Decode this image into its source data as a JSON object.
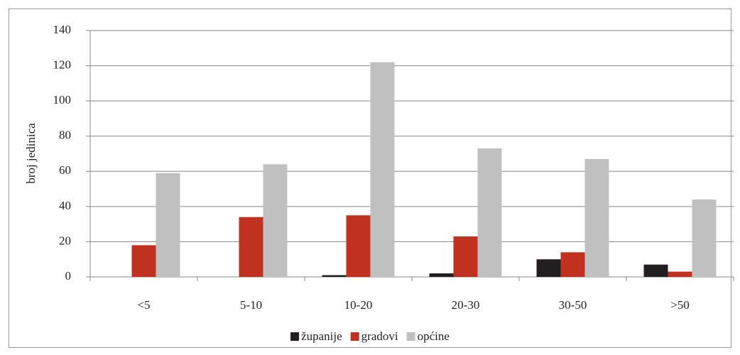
{
  "chart_data": {
    "type": "bar",
    "y_label": "broj jedinica",
    "categories": [
      "<5",
      "5-10",
      "10-20",
      "20-30",
      "30-50",
      ">50"
    ],
    "series": [
      {
        "name": "županije",
        "color": "#231f20",
        "values": [
          0,
          0,
          1,
          2,
          10,
          7
        ]
      },
      {
        "name": "gradovi",
        "color": "#c0311f",
        "values": [
          18,
          34,
          35,
          23,
          14,
          3
        ]
      },
      {
        "name": "općine",
        "color": "#c0c0c0",
        "values": [
          59,
          64,
          122,
          73,
          67,
          44
        ]
      }
    ],
    "ylim": [
      0,
      140
    ],
    "yticks": [
      0,
      20,
      40,
      60,
      80,
      100,
      120,
      140
    ],
    "grid": true
  }
}
